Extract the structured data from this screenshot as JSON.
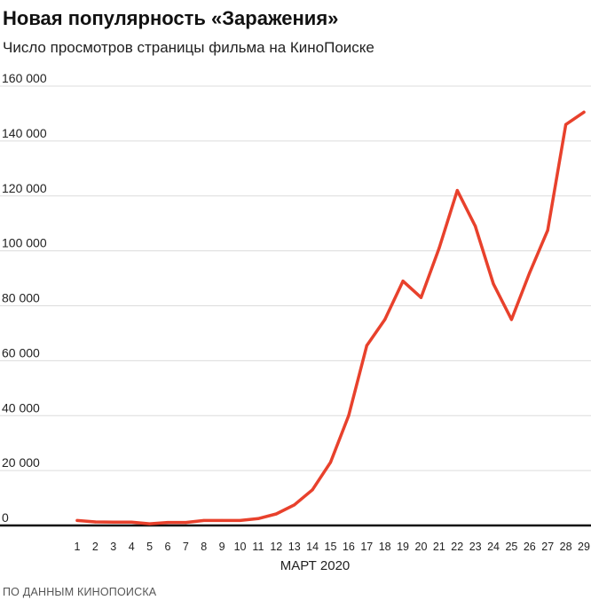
{
  "chart_data": {
    "type": "line",
    "title": "Новая популярность «Заражения»",
    "subtitle": "Число просмотров страницы фильма на КиноПоиске",
    "xlabel": "МАРТ 2020",
    "ylabel": "",
    "source": "ПО ДАННЫМ КИНОПОИСКА",
    "ylim": [
      0,
      160000
    ],
    "yticks": [
      0,
      20000,
      40000,
      60000,
      80000,
      100000,
      120000,
      140000,
      160000
    ],
    "ytick_labels": [
      "0",
      "20 000",
      "40 000",
      "60 000",
      "80 000",
      "100 000",
      "120 000",
      "140 000",
      "160 000"
    ],
    "grid": true,
    "line_color": "#e8412c",
    "x": [
      1,
      2,
      3,
      4,
      5,
      6,
      7,
      8,
      9,
      10,
      11,
      12,
      13,
      14,
      15,
      16,
      17,
      18,
      19,
      20,
      21,
      22,
      23,
      24,
      25,
      26,
      27,
      28,
      29
    ],
    "series": [
      {
        "name": "",
        "values": [
          1800,
          1300,
          1200,
          1200,
          600,
          1100,
          1100,
          1800,
          1800,
          1800,
          2500,
          4200,
          7500,
          13000,
          23000,
          40000,
          65500,
          75000,
          89000,
          83000,
          101000,
          122000,
          109000,
          88000,
          75000,
          92000,
          107500,
          146000,
          150500
        ]
      }
    ]
  }
}
